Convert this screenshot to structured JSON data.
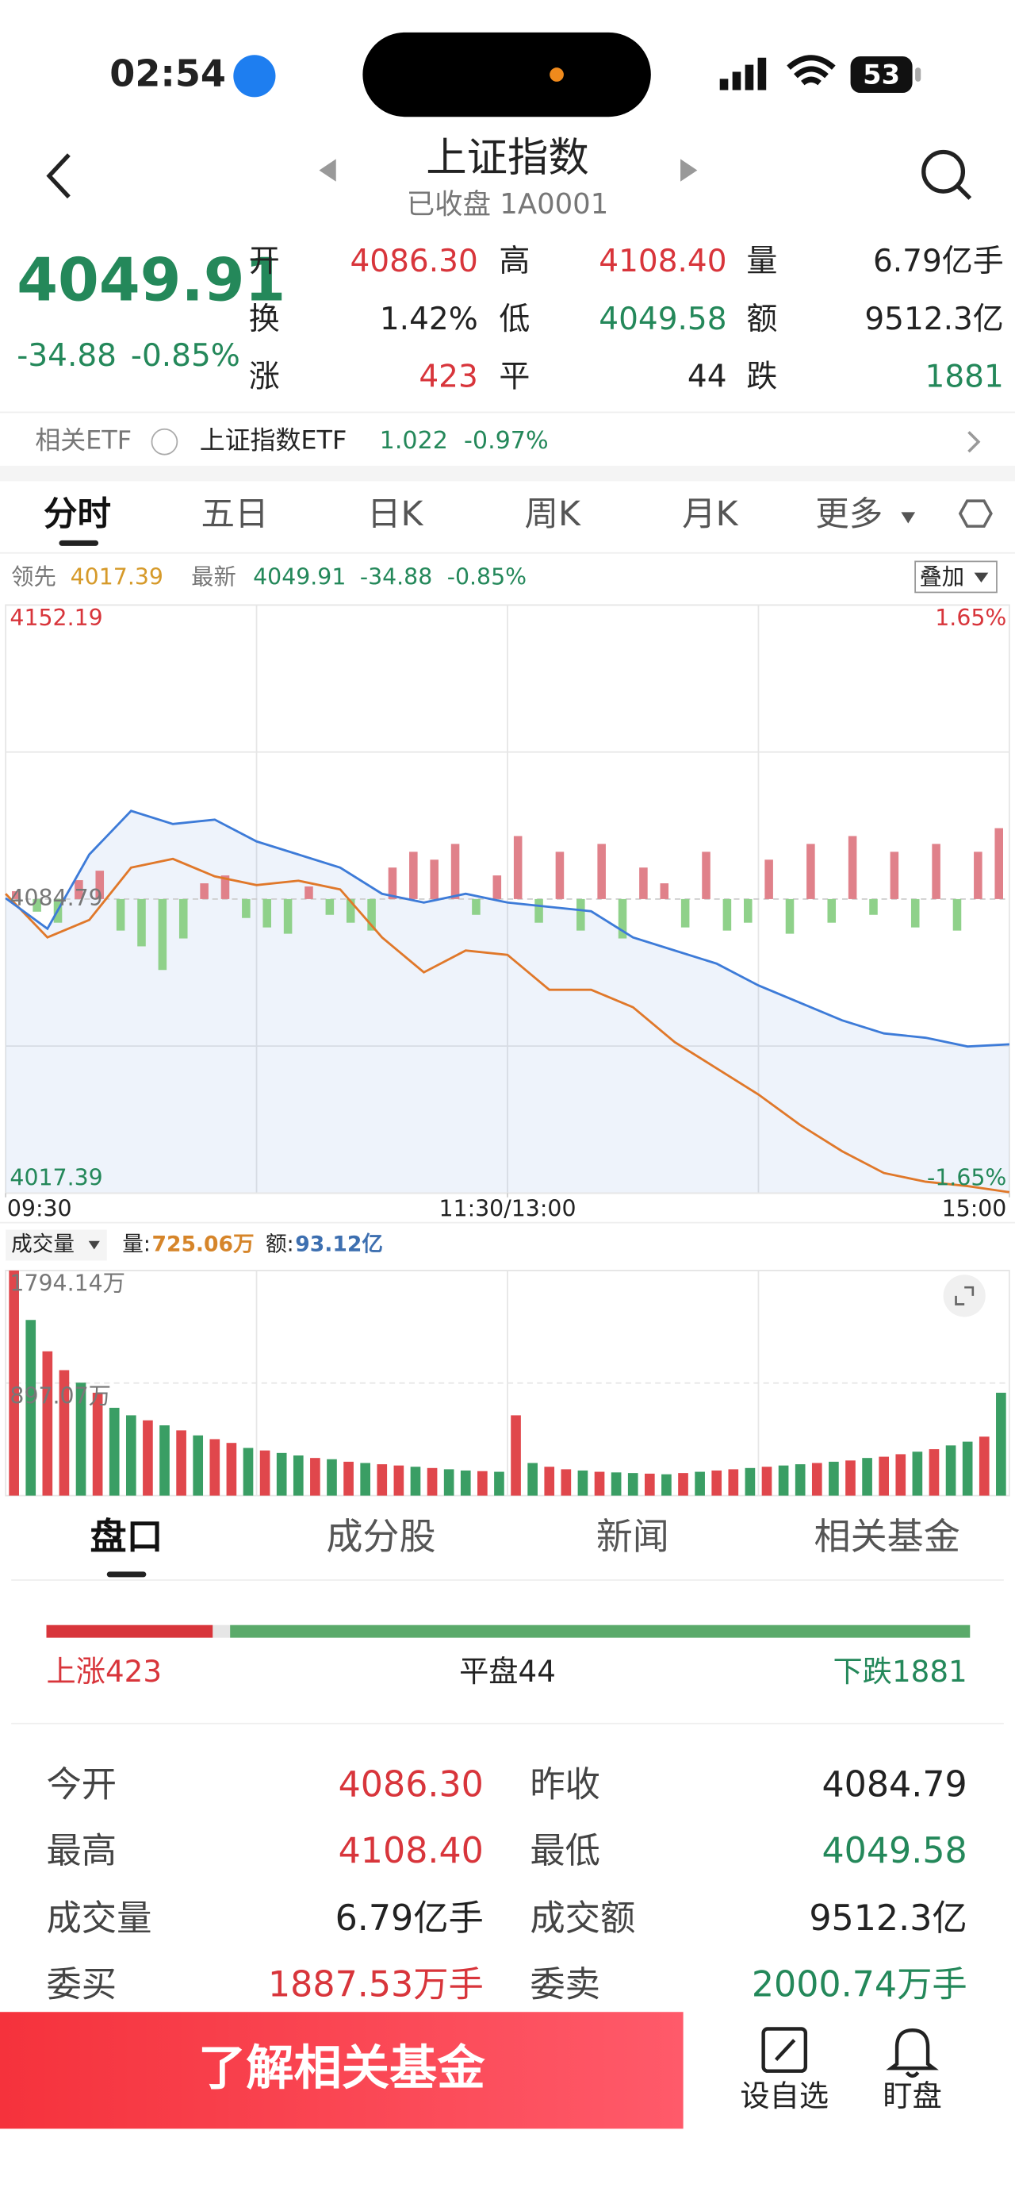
{
  "status": {
    "time": "02:54",
    "battery": "53"
  },
  "header": {
    "title": "上证指数",
    "subtitle": "已收盘 1A0001"
  },
  "quote": {
    "price": "4049.91",
    "change": "-34.88",
    "pct": "-0.85%",
    "fields": [
      {
        "label": "开",
        "value": "4086.30",
        "tone": "red"
      },
      {
        "label": "高",
        "value": "4108.40",
        "tone": "red"
      },
      {
        "label": "量",
        "value": "6.79亿手",
        "tone": "black"
      },
      {
        "label": "换",
        "value": "1.42%",
        "tone": "black"
      },
      {
        "label": "低",
        "value": "4049.58",
        "tone": "green"
      },
      {
        "label": "额",
        "value": "9512.3亿",
        "tone": "black"
      },
      {
        "label": "涨",
        "value": "423",
        "tone": "red"
      },
      {
        "label": "平",
        "value": "44",
        "tone": "black"
      },
      {
        "label": "跌",
        "value": "1881",
        "tone": "green"
      }
    ]
  },
  "etf": {
    "label": "相关ETF",
    "name": "上证指数ETF",
    "price": "1.022",
    "pct": "-0.97%"
  },
  "tabs": [
    "分时",
    "五日",
    "日K",
    "周K",
    "月K",
    "更多"
  ],
  "legend": {
    "lead_value": "4017.39",
    "latest_value": "4049.91",
    "change": "-34.88",
    "pct": "-0.85%",
    "overlay": "叠加"
  },
  "chart_data": [
    {
      "type": "line",
      "x": [
        0,
        10,
        20,
        30,
        40,
        50,
        60,
        70,
        80,
        90,
        100,
        110,
        120,
        130,
        140,
        150,
        160,
        170,
        180,
        190,
        200,
        210,
        220,
        230,
        240
      ],
      "xlim": [
        0,
        240
      ],
      "xticks": [
        {
          "value": 0,
          "label": "09:30"
        },
        {
          "value": 120,
          "label": "11:30/13:00"
        },
        {
          "value": 240,
          "label": "15:00"
        }
      ],
      "ylim": [
        4017.39,
        4152.19
      ],
      "yticks": [
        4152.19,
        4084.79,
        4017.39
      ],
      "y2lim": [
        -1.65,
        1.65
      ],
      "y2ticks": [
        {
          "value": 1.65,
          "label": "1.65%"
        },
        {
          "value": -1.65,
          "label": "-1.65%"
        }
      ],
      "series": [
        {
          "name": "领先",
          "color": "#e0782a",
          "values": [
            4086,
            4076,
            4080,
            4092,
            4094,
            4090,
            4088,
            4089,
            4087,
            4076,
            4068,
            4073,
            4072,
            4064,
            4064,
            4060,
            4052,
            4046,
            4040,
            4033,
            4027,
            4022,
            4020,
            4019,
            4017.6
          ]
        },
        {
          "name": "最新",
          "color": "#3d7bd8",
          "values": [
            4085,
            4078,
            4095,
            4105,
            4102,
            4103,
            4098,
            4095,
            4092,
            4086,
            4084,
            4086,
            4084,
            4083,
            4082,
            4076,
            4073,
            4070,
            4065,
            4061,
            4057,
            4054,
            4053,
            4051,
            4051.5
          ]
        }
      ]
    },
    {
      "type": "bar",
      "ylim": [
        -50,
        50
      ],
      "up_color": "#e0818a",
      "down_color": "#8fd18a",
      "values": [
        5,
        -8,
        -15,
        12,
        18,
        -20,
        -30,
        -45,
        -25,
        10,
        15,
        -12,
        -18,
        -22,
        8,
        -10,
        -15,
        -20,
        20,
        30,
        25,
        35,
        -10,
        15,
        40,
        -15,
        30,
        -20,
        35,
        -25,
        20,
        10,
        -18,
        30,
        -20,
        -15,
        25,
        -22,
        35,
        -15,
        40,
        -10,
        30,
        -18,
        35,
        -20,
        30,
        45
      ]
    },
    {
      "type": "bar",
      "title": "成交量",
      "volume_label": "量:",
      "volume": "725.06万",
      "amount_label": "额:",
      "amount": "93.12亿",
      "ylim": [
        0,
        1794.14
      ],
      "yticks": [
        {
          "value": 1794.14,
          "label": "1794.14万"
        },
        {
          "value": 897.07,
          "label": "897.07万"
        }
      ],
      "values": [
        1794,
        1400,
        1150,
        1000,
        900,
        820,
        700,
        640,
        600,
        560,
        520,
        480,
        450,
        420,
        380,
        360,
        340,
        320,
        300,
        290,
        270,
        260,
        250,
        240,
        230,
        220,
        210,
        200,
        195,
        190,
        640,
        260,
        230,
        210,
        200,
        190,
        185,
        180,
        175,
        170,
        180,
        190,
        200,
        210,
        220,
        230,
        240,
        250,
        260,
        270,
        280,
        300,
        310,
        330,
        350,
        370,
        400,
        430,
        470,
        820
      ],
      "colors": [
        "#e0474c",
        "#3a9e64",
        "#e0474c",
        "#e0474c",
        "#3a9e64",
        "#e0474c",
        "#3a9e64",
        "#3a9e64",
        "#e0474c",
        "#3a9e64",
        "#e0474c",
        "#3a9e64",
        "#e0474c",
        "#e0474c",
        "#3a9e64",
        "#e0474c",
        "#3a9e64",
        "#3a9e64",
        "#e0474c",
        "#3a9e64",
        "#e0474c",
        "#3a9e64",
        "#e0474c",
        "#e0474c",
        "#3a9e64",
        "#e0474c",
        "#3a9e64",
        "#3a9e64",
        "#e0474c",
        "#3a9e64",
        "#e0474c",
        "#3a9e64",
        "#e0474c",
        "#e0474c",
        "#3a9e64",
        "#e0474c",
        "#3a9e64",
        "#3a9e64",
        "#e0474c",
        "#3a9e64",
        "#e0474c",
        "#3a9e64",
        "#e0474c",
        "#e0474c",
        "#3a9e64",
        "#e0474c",
        "#3a9e64",
        "#3a9e64",
        "#e0474c",
        "#3a9e64",
        "#e0474c",
        "#3a9e64",
        "#e0474c",
        "#e0474c",
        "#3a9e64",
        "#e0474c",
        "#3a9e64",
        "#3a9e64",
        "#e0474c",
        "#3a9e64"
      ]
    }
  ],
  "lower_tabs": [
    "盘口",
    "成分股",
    "新闻",
    "相关基金"
  ],
  "breadth": {
    "up_label": "上涨",
    "up": 423,
    "flat_label": "平盘",
    "flat": 44,
    "down_label": "下跌",
    "down": 1881
  },
  "stats": [
    {
      "label": "今开",
      "value": "4086.30",
      "tone": "red"
    },
    {
      "label": "昨收",
      "value": "4084.79",
      "tone": "black"
    },
    {
      "label": "最高",
      "value": "4108.40",
      "tone": "red"
    },
    {
      "label": "最低",
      "value": "4049.58",
      "tone": "green"
    },
    {
      "label": "成交量",
      "value": "6.79亿手",
      "tone": "black"
    },
    {
      "label": "成交额",
      "value": "9512.3亿",
      "tone": "black"
    },
    {
      "label": "委买",
      "value": "1887.53万手",
      "tone": "red"
    },
    {
      "label": "委卖",
      "value": "2000.74万手",
      "tone": "green"
    }
  ],
  "bottom": {
    "button": "了解相关基金",
    "watch": "设自选",
    "monitor": "盯盘"
  }
}
